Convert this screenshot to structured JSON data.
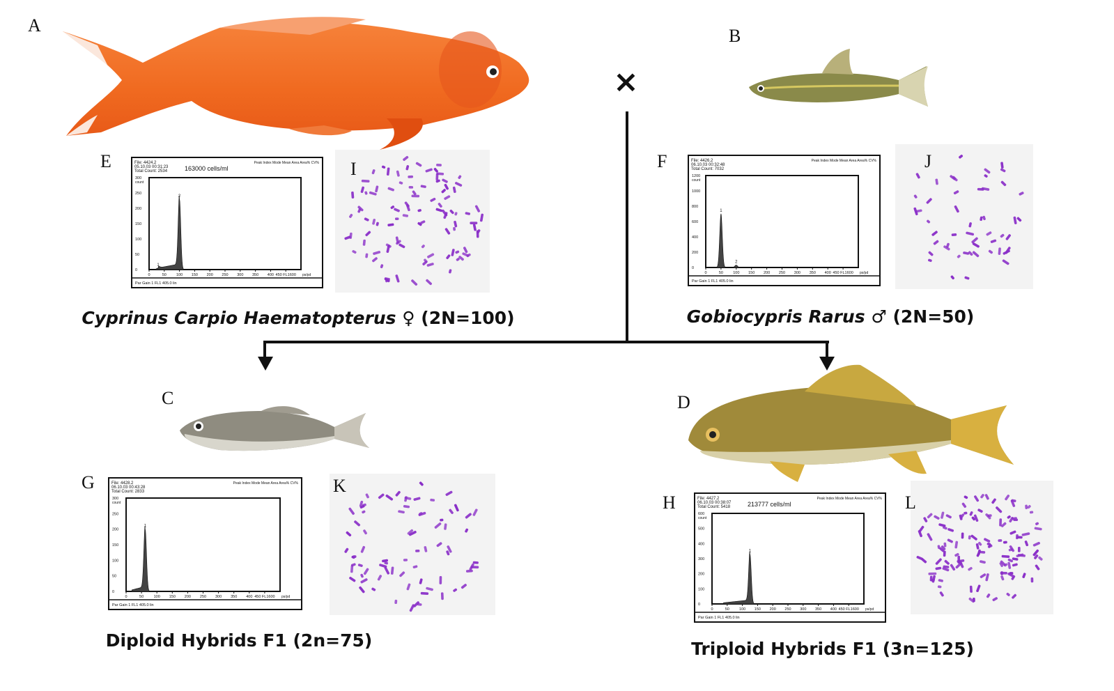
{
  "panels": {
    "A": "A",
    "B": "B",
    "C": "C",
    "D": "D",
    "E": "E",
    "F": "F",
    "G": "G",
    "H": "H",
    "I": "I",
    "J": "J",
    "K": "K",
    "L": "L"
  },
  "cross_symbol": "×",
  "captions": {
    "female_parent": {
      "name": "Cyprinus Carpio Haematopterus",
      "sex": "♀",
      "ploidy": "(2N=100)"
    },
    "male_parent": {
      "name": "Gobiocypris Rarus",
      "sex": "♂",
      "ploidy": "(2N=50)"
    },
    "diploid": "Diploid Hybrids F1 (2n=75)",
    "triploid": "Triploid Hybrids F1 (3n=125)"
  },
  "histograms": {
    "E": {
      "file": "File: 4424.2",
      "date": "05.10.03 00:31:23",
      "total": "Total Count: 2534",
      "conc": "163000 cells/ml",
      "peak_header": "Peak  Index  Mode  Mean  Area  Area%  CV%",
      "yticks": [
        "0",
        "50",
        "100",
        "150",
        "200",
        "250",
        "300"
      ],
      "ymax": 300,
      "ylabel": "count",
      "peaks": [
        {
          "label": "1",
          "x": 30,
          "y": 5
        },
        {
          "label": "2",
          "x": 100,
          "y": 230
        }
      ]
    },
    "F": {
      "file": "File: 4426.2",
      "date": "06.10.03 00:32:48",
      "total": "Total Count: 7032",
      "conc": "",
      "peak_header": "Peak  Index  Mode  Mean  Area  Area%  CV%",
      "yticks": [
        "0",
        "200",
        "400",
        "600",
        "800",
        "1000",
        "1200"
      ],
      "ymax": 1200,
      "ylabel": "count",
      "peaks": [
        {
          "label": "1",
          "x": 50,
          "y": 700
        },
        {
          "label": "2",
          "x": 100,
          "y": 30
        }
      ]
    },
    "G": {
      "file": "File: 4428.2",
      "date": "06.10.03 00:43:28",
      "total": "Total Count: 2833",
      "conc": "",
      "peak_header": "Peak  Index  Mode  Mean  Area  Area%  CV%",
      "yticks": [
        "0",
        "50",
        "100",
        "150",
        "200",
        "250",
        "300"
      ],
      "ymax": 300,
      "ylabel": "count",
      "peaks": [
        {
          "label": "1",
          "x": 62,
          "y": 200
        }
      ]
    },
    "H": {
      "file": "File: 4427.2",
      "date": "06.10.03 00:38:07",
      "total": "Total Count: 5418",
      "conc": "213777 cells/ml",
      "peak_header": "Peak  Index  Mode  Mean  Area  Area%  CV%",
      "yticks": [
        "0",
        "100",
        "200",
        "300",
        "400",
        "500",
        "600"
      ],
      "ymax": 600,
      "ylabel": "count",
      "peaks": [
        {
          "label": "1",
          "x": 125,
          "y": 330
        }
      ]
    }
  },
  "x_axis": {
    "ticks": [
      "0",
      "50",
      "100",
      "150",
      "200",
      "250",
      "300",
      "350",
      "400",
      "450 FL1600"
    ],
    "unit": "ps/pd",
    "footer": "Par  Gain  1 FL1  405.0 lin"
  },
  "colors": {
    "chromosome": "#8a2fc8",
    "goldfish": "#f0641e",
    "line": "#111111"
  }
}
